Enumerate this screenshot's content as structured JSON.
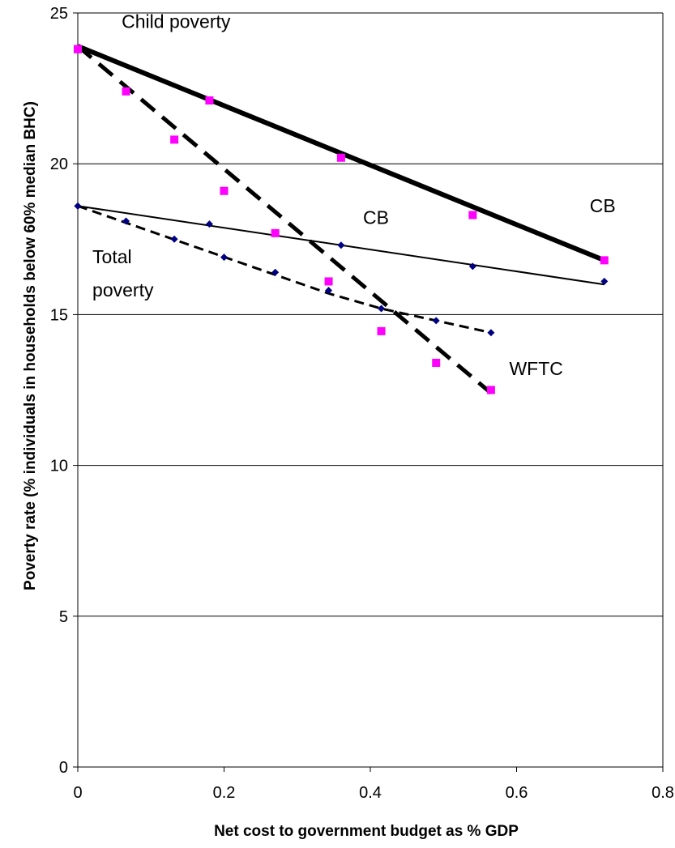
{
  "chart_data": {
    "type": "scatter",
    "title": "",
    "xlabel": "Net cost to government budget as % GDP",
    "ylabel": "Poverty rate (% individuals in households below 60% median BHC)",
    "xlim": [
      0,
      0.8
    ],
    "ylim": [
      0,
      25
    ],
    "x_ticks": [
      "0",
      "0.2",
      "0.4",
      "0.6",
      "0.8"
    ],
    "y_ticks": [
      "0",
      "5",
      "10",
      "15",
      "20",
      "25"
    ],
    "grid": "horizontal",
    "legend": "none",
    "series": [
      {
        "group": "Child poverty",
        "policy": "CB",
        "marker": "square",
        "color": "#ff00ff",
        "line_style": "solid-thick",
        "x": [
          0,
          0.18,
          0.36,
          0.54,
          0.72
        ],
        "y": [
          23.8,
          22.1,
          20.2,
          18.3,
          16.8
        ],
        "fit": [
          [
            0,
            23.9
          ],
          [
            0.72,
            16.8
          ]
        ]
      },
      {
        "group": "Child poverty",
        "policy": "WFTC",
        "marker": "square",
        "color": "#ff00ff",
        "line_style": "dashed-thick",
        "x": [
          0,
          0.066,
          0.132,
          0.2,
          0.27,
          0.343,
          0.415,
          0.49,
          0.565
        ],
        "y": [
          23.8,
          22.4,
          20.8,
          19.1,
          17.7,
          16.1,
          14.45,
          13.4,
          12.5
        ],
        "fit": [
          [
            0,
            23.9
          ],
          [
            0.565,
            12.4
          ]
        ]
      },
      {
        "group": "Total poverty",
        "policy": "CB",
        "marker": "diamond",
        "color": "#000080",
        "line_style": "solid-thin",
        "x": [
          0,
          0.18,
          0.36,
          0.54,
          0.72
        ],
        "y": [
          18.6,
          18.0,
          17.3,
          16.6,
          16.1
        ],
        "fit": [
          [
            0,
            18.6
          ],
          [
            0.72,
            16.0
          ]
        ]
      },
      {
        "group": "Total poverty",
        "policy": "WFTC",
        "marker": "diamond",
        "color": "#000080",
        "line_style": "dashed-thin",
        "x": [
          0,
          0.066,
          0.132,
          0.2,
          0.27,
          0.343,
          0.415,
          0.49,
          0.565
        ],
        "y": [
          18.6,
          18.1,
          17.5,
          16.9,
          16.4,
          15.8,
          15.2,
          14.8,
          14.4
        ],
        "fit": [
          [
            0,
            18.6
          ],
          [
            0.343,
            15.7
          ],
          [
            0.415,
            15.2
          ],
          [
            0.565,
            14.4
          ]
        ]
      }
    ],
    "annotations": [
      {
        "text": "Child poverty",
        "x": 0.06,
        "y": 24.5
      },
      {
        "text": "CB",
        "x": 0.7,
        "y": 18.4
      },
      {
        "text": "CB",
        "x": 0.39,
        "y": 18.0
      },
      {
        "text": "Total",
        "x": 0.02,
        "y": 16.7
      },
      {
        "text": "poverty",
        "x": 0.02,
        "y": 15.6
      },
      {
        "text": "WFTC",
        "x": 0.59,
        "y": 13.0
      }
    ]
  }
}
